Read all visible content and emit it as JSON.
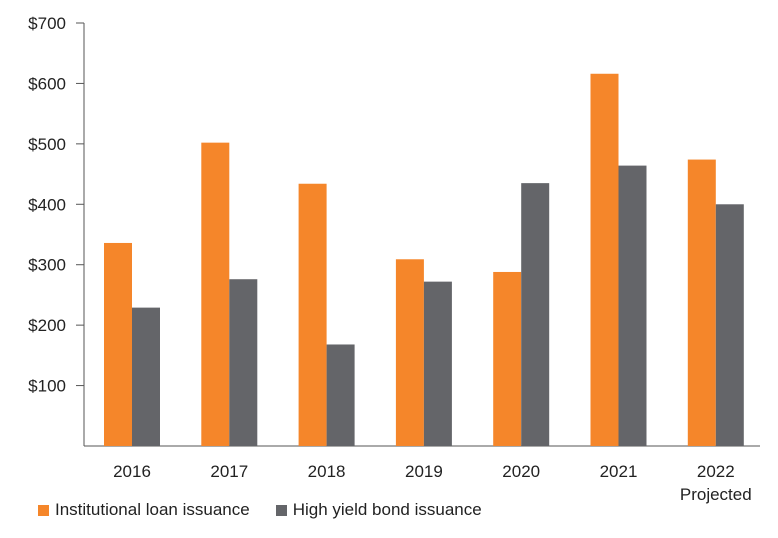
{
  "chart_data": {
    "type": "bar",
    "categories": [
      "2016",
      "2017",
      "2018",
      "2019",
      "2020",
      "2021",
      "2022"
    ],
    "category_sublabels": [
      "",
      "",
      "",
      "",
      "",
      "",
      "Projected"
    ],
    "series": [
      {
        "name": "Institutional loan issuance",
        "values": [
          336,
          502,
          434,
          309,
          288,
          616,
          474
        ],
        "color": "#F5862A"
      },
      {
        "name": "High yield bond issuance",
        "values": [
          229,
          276,
          168,
          272,
          435,
          464,
          400
        ],
        "color": "#646569"
      }
    ],
    "ylim": [
      0,
      700
    ],
    "yticks": [
      100,
      200,
      300,
      400,
      500,
      600,
      700
    ],
    "ytick_labels": [
      "$100",
      "$200",
      "$300",
      "$400",
      "$500",
      "$600",
      "$700"
    ],
    "title": "",
    "xlabel": "",
    "ylabel": "",
    "grid": false,
    "legend_position": "bottom-left"
  },
  "colors": {
    "axis": "#555555",
    "text": "#222222"
  }
}
